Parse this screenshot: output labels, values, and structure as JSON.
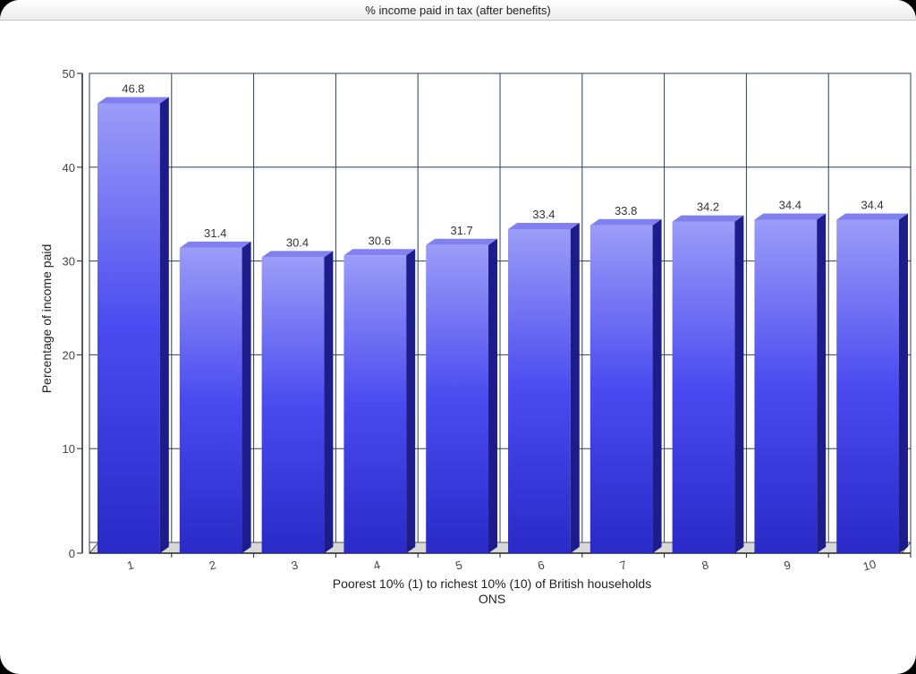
{
  "chart_data": {
    "type": "bar",
    "title": "% income paid in tax (after benefits)",
    "xlabel": "Poorest 10% (1) to richest 10% (10) of British households",
    "xlabel_sub": "ONS",
    "ylabel": "Percentage of income paid",
    "categories": [
      "1",
      "2",
      "3",
      "4",
      "5",
      "6",
      "7",
      "8",
      "9",
      "10"
    ],
    "values": [
      46.8,
      31.4,
      30.4,
      30.6,
      31.7,
      33.4,
      33.8,
      34.2,
      34.4,
      34.4
    ],
    "data_labels": [
      "46.8",
      "31.4",
      "30.4",
      "30.6",
      "31.7",
      "33.4",
      "33.8",
      "34.2",
      "34.4",
      "34.4"
    ],
    "ylim": [
      0,
      50
    ],
    "yticks": [
      0,
      10,
      20,
      30,
      40,
      50
    ],
    "grid": true,
    "legend": "none",
    "bar_color": "#4a4af0",
    "bar_color_light": "#9c9cf8",
    "bar_color_dark": "#2a2ac8",
    "bar_side_color": "#1c1c8a",
    "bar_top_color": "#8080f0"
  }
}
